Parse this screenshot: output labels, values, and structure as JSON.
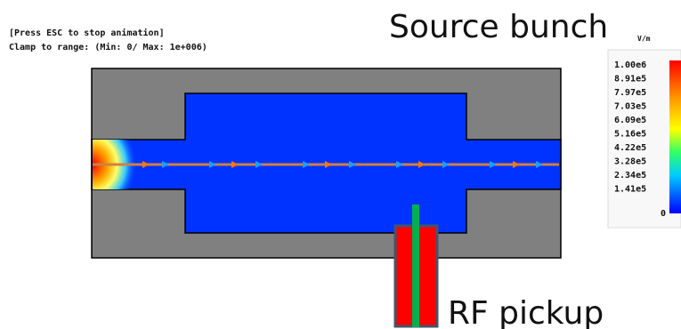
{
  "header": {
    "line1": "[Press ESC to stop animation]",
    "line2": "Clamp to range: (Min: 0/ Max: 1e+006)"
  },
  "title": "Source bunch",
  "pickup_label": "RF pickup",
  "colorbar": {
    "unit": "V/m",
    "labels": [
      "1.00e6",
      "8.91e5",
      "7.97e5",
      "7.03e5",
      "6.09e5",
      "5.16e5",
      "4.22e5",
      "3.28e5",
      "2.34e5",
      "1.41e5",
      "0"
    ]
  }
}
